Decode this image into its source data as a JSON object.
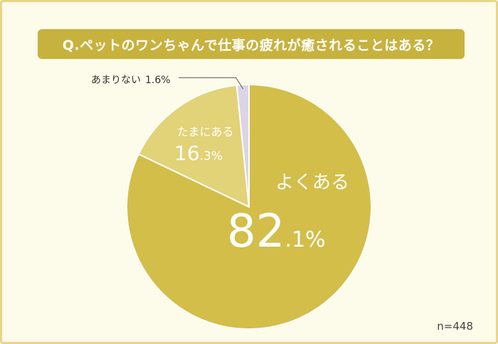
{
  "title": "Q.ペットのワンちゃんで仕事の疲れが癒されることはある？",
  "sample_size": "n=448",
  "colors": {
    "frame_bg": "#fdfbe9",
    "frame_border": "#e8d58a",
    "title_bg": "#c8b23e"
  },
  "chart_data": {
    "type": "pie",
    "title": "Q.ペットのワンちゃんで仕事の疲れが癒されることはある？",
    "slices": [
      {
        "label": "よくある",
        "value": 82.1,
        "value_int": "82",
        "value_frac": ".1%",
        "color": "#d3be49"
      },
      {
        "label": "たまにある",
        "value": 16.3,
        "value_int": "16",
        "value_frac": ".3%",
        "color": "#e2d278"
      },
      {
        "label": "あまりない",
        "value": 1.6,
        "value_text": "1.6%",
        "color": "#dcd4e6"
      }
    ]
  }
}
